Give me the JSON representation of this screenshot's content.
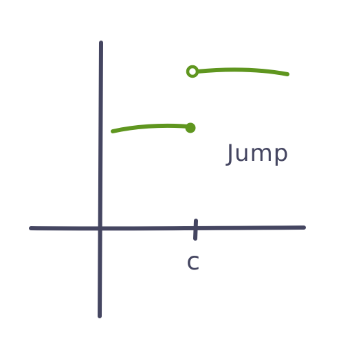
{
  "colors": {
    "axis": "#454661",
    "curve": "#5f961f",
    "background": "#ffffff"
  },
  "labels": {
    "point_label": "c",
    "annotation": "Jump"
  }
}
